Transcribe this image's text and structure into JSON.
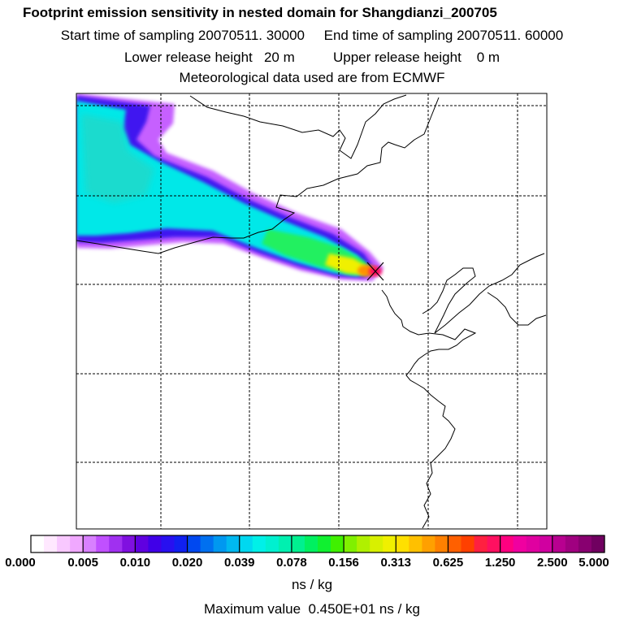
{
  "header": {
    "title": "Footprint emission sensitivity in nested domain for Shangdianzi_200705",
    "start_label": "Start time of sampling",
    "start_value": "20070511. 30000",
    "end_label": "End time of sampling",
    "end_value": "20070511. 60000",
    "lower_label": "Lower release height",
    "lower_value": "20 m",
    "upper_label": "Upper release height",
    "upper_value": "0 m",
    "met_line": "Meteorological data used are from ECMWF"
  },
  "map": {
    "station_marker": "receptor-x-marker",
    "plume_palette": {
      "low": "#c060ff",
      "mid": "#00e8e8",
      "high": "#ffff00",
      "peak": "#ff0060"
    }
  },
  "colorbar": {
    "ticks": [
      "0.000",
      "0.005",
      "0.010",
      "0.020",
      "0.039",
      "0.078",
      "0.156",
      "0.313",
      "0.625",
      "1.250",
      "2.500",
      "5.000"
    ],
    "units": "ns / kg",
    "colors": [
      "#ffffff",
      "#ffe8ff",
      "#f8c8ff",
      "#f0a8ff",
      "#d880ff",
      "#c050ff",
      "#a030f0",
      "#8010e0",
      "#6000e0",
      "#4000e8",
      "#2810f0",
      "#1020f0",
      "#0048f0",
      "#0070f0",
      "#0098f0",
      "#00b8f0",
      "#00d8f0",
      "#00f0e8",
      "#00f0d0",
      "#00f0b0",
      "#00f090",
      "#00f060",
      "#10f030",
      "#40f000",
      "#80f000",
      "#b0f000",
      "#d8f000",
      "#f0f000",
      "#ffe000",
      "#ffc000",
      "#ffa000",
      "#ff8000",
      "#ff6000",
      "#ff4000",
      "#ff2040",
      "#ff1060",
      "#ff0080",
      "#f000a0",
      "#e000a0",
      "#d000a0",
      "#b80090",
      "#a00080",
      "#880070",
      "#700060"
    ]
  },
  "max_label": "Maximum value",
  "max_value": "0.450E+01 ns / kg"
}
